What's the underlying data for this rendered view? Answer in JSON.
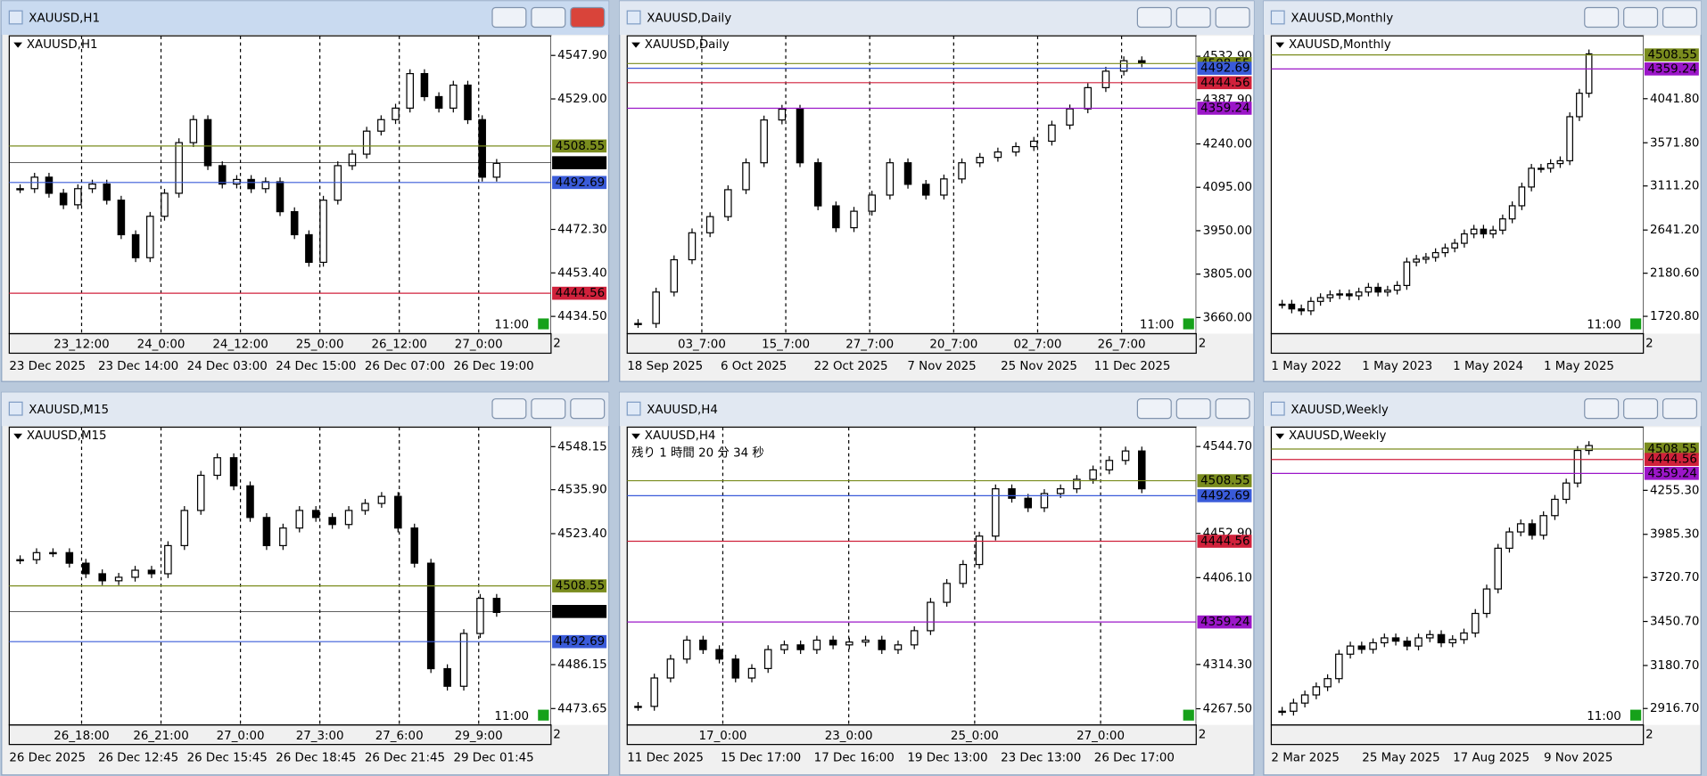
{
  "windows": [
    {
      "title": "XAUUSD,H1",
      "chart_label": "XAUUSD,H1",
      "ylim": [
        4427,
        4556.4
      ],
      "yticks": [
        {
          "value": 4547.9,
          "label": "4547.90"
        },
        {
          "value": 4529,
          "label": "4529.00"
        },
        {
          "value": 4472.3,
          "label": "4472.30"
        },
        {
          "value": 4453.4,
          "label": "4453.40"
        },
        {
          "value": 4434.5,
          "label": "4434.50"
        }
      ],
      "levels": [
        {
          "value": 4508.55,
          "color": "#7a8c1e"
        },
        {
          "value": 4501.27,
          "color": "#000000"
        },
        {
          "value": 4492.69,
          "color": "#3a5bd9"
        },
        {
          "value": 4444.56,
          "color": "#d0213b"
        }
      ],
      "closes": [
        4490,
        4495,
        4488,
        4483,
        4490,
        4492,
        4485,
        4470,
        4460,
        4478,
        4488,
        4510,
        4520,
        4500,
        4492,
        4494,
        4490,
        4493,
        4480,
        4470,
        4458,
        4485,
        4500,
        4505,
        4515,
        4520,
        4525,
        4540,
        4530,
        4525,
        4535,
        4520,
        4495,
        4501
      ],
      "time_top": [
        "23_12:00",
        "24_0:00",
        "24_12:00",
        "25_0:00",
        "26_12:00",
        "27_0:00"
      ],
      "time_bottom": [
        "23 Dec 2025",
        "23 Dec 14:00",
        "24 Dec 03:00",
        "24 Dec 15:00",
        "26 Dec 07:00",
        "26 Dec 19:00"
      ],
      "countdown": "11:00",
      "corner": "2"
    },
    {
      "title": "XAUUSD,Daily",
      "chart_label": "XAUUSD,Daily",
      "ylim": [
        3606,
        4601
      ],
      "yticks": [
        {
          "value": 4532.9,
          "label": "4532.90"
        },
        {
          "value": 4387.9,
          "label": "4387.90"
        },
        {
          "value": 4240,
          "label": "4240.00"
        },
        {
          "value": 4095,
          "label": "4095.00"
        },
        {
          "value": 3950,
          "label": "3950.00"
        },
        {
          "value": 3805,
          "label": "3805.00"
        },
        {
          "value": 3660,
          "label": "3660.00"
        }
      ],
      "levels": [
        {
          "value": 4508.55,
          "color": "#7a8c1e"
        },
        {
          "value": 4492.69,
          "color": "#3a5bd9"
        },
        {
          "value": 4444.56,
          "color": "#d0213b"
        },
        {
          "value": 4359.24,
          "color": "#9b16c8"
        }
      ],
      "closes": [
        3640,
        3745,
        3853,
        3943,
        3997,
        4087,
        4177,
        4320,
        4356,
        4177,
        4033,
        3960,
        4015,
        4069,
        4177,
        4105,
        4069,
        4123,
        4177,
        4195,
        4213,
        4231,
        4249,
        4303,
        4357,
        4428,
        4483,
        4518,
        4511
      ],
      "time_top": [
        "03_7:00",
        "15_7:00",
        "27_7:00",
        "20_7:00",
        "02_7:00",
        "26_7:00"
      ],
      "time_bottom": [
        "18 Sep 2025",
        "6 Oct 2025",
        "22 Oct 2025",
        "7 Nov 2025",
        "25 Nov 2025",
        "11 Dec 2025"
      ],
      "countdown": "11:00",
      "corner": "2"
    },
    {
      "title": "XAUUSD,Monthly",
      "chart_label": "XAUUSD,Monthly",
      "ylim": [
        1536,
        4712
      ],
      "yticks": [
        {
          "value": 4041.8,
          "label": "4041.80"
        },
        {
          "value": 3571.8,
          "label": "3571.80"
        },
        {
          "value": 3111.2,
          "label": "3111.20"
        },
        {
          "value": 2641.2,
          "label": "2641.20"
        },
        {
          "value": 2180.6,
          "label": "2180.60"
        },
        {
          "value": 1720.8,
          "label": "1720.80"
        }
      ],
      "levels": [
        {
          "value": 4508.55,
          "color": "#7a8c1e"
        },
        {
          "value": 4359.24,
          "color": "#9b16c8"
        }
      ],
      "closes": [
        1850,
        1800,
        1780,
        1880,
        1920,
        1950,
        1960,
        1940,
        1980,
        2030,
        1980,
        2000,
        2050,
        2300,
        2330,
        2350,
        2400,
        2450,
        2500,
        2600,
        2650,
        2600,
        2640,
        2760,
        2900,
        3100,
        3300,
        3300,
        3350,
        3380,
        3850,
        4100,
        4520
      ],
      "time_top": [],
      "time_bottom": [
        "1 May 2022",
        "1 May 2023",
        "1 May 2024",
        "1 May 2025"
      ],
      "countdown": "11:00",
      "corner": "2"
    },
    {
      "title": "XAUUSD,M15",
      "chart_label": "XAUUSD,M15",
      "ylim": [
        4469,
        4553.7
      ],
      "yticks": [
        {
          "value": 4548.15,
          "label": "4548.15"
        },
        {
          "value": 4535.9,
          "label": "4535.90"
        },
        {
          "value": 4523.4,
          "label": "4523.40"
        },
        {
          "value": 4486.15,
          "label": "4486.15"
        },
        {
          "value": 4473.65,
          "label": "4473.65"
        }
      ],
      "levels": [
        {
          "value": 4508.55,
          "color": "#7a8c1e"
        },
        {
          "value": 4501.27,
          "color": "#000000"
        },
        {
          "value": 4492.69,
          "color": "#3a5bd9"
        }
      ],
      "closes": [
        4516,
        4518,
        4518,
        4515,
        4512,
        4510,
        4511,
        4513,
        4512,
        4520,
        4530,
        4540,
        4545,
        4537,
        4528,
        4520,
        4525,
        4530,
        4528,
        4526,
        4530,
        4532,
        4534,
        4525,
        4515,
        4485,
        4480,
        4495,
        4505,
        4501
      ],
      "time_top": [
        "26_18:00",
        "26_21:00",
        "27_0:00",
        "27_3:00",
        "27_6:00",
        "29_9:00"
      ],
      "time_bottom": [
        "26 Dec 2025",
        "26 Dec 12:45",
        "26 Dec 15:45",
        "26 Dec 18:45",
        "26 Dec 21:45",
        "29 Dec 01:45"
      ],
      "countdown": "11:00",
      "corner": "2"
    },
    {
      "title": "XAUUSD,H4",
      "chart_label": "XAUUSD,H4",
      "ylim": [
        4250.4,
        4565.2
      ],
      "yticks": [
        {
          "value": 4544.7,
          "label": "4544.70"
        },
        {
          "value": 4452.9,
          "label": "4452.90"
        },
        {
          "value": 4406.1,
          "label": "4406.10"
        },
        {
          "value": 4314.3,
          "label": "4314.30"
        },
        {
          "value": 4267.5,
          "label": "4267.50"
        }
      ],
      "levels": [
        {
          "value": 4508.55,
          "color": "#7a8c1e"
        },
        {
          "value": 4492.69,
          "color": "#3a5bd9"
        },
        {
          "value": 4444.56,
          "color": "#d0213b"
        },
        {
          "value": 4359.24,
          "color": "#9b16c8"
        }
      ],
      "closes": [
        4270,
        4300,
        4320,
        4340,
        4330,
        4320,
        4300,
        4310,
        4330,
        4335,
        4330,
        4340,
        4335,
        4338,
        4340,
        4330,
        4335,
        4350,
        4380,
        4400,
        4420,
        4450,
        4500,
        4490,
        4480,
        4495,
        4500,
        4510,
        4520,
        4530,
        4540,
        4500
      ],
      "time_top": [
        "17_0:00",
        "23_0:00",
        "25_0:00",
        "27_0:00"
      ],
      "time_bottom": [
        "11 Dec 2025",
        "15 Dec 17:00",
        "17 Dec 16:00",
        "19 Dec 13:00",
        "23 Dec 13:00",
        "26 Dec 17:00"
      ],
      "countdown": "残り 1 時間 20 分 34 秒",
      "corner": "2"
    },
    {
      "title": "XAUUSD,Weekly",
      "chart_label": "XAUUSD,Weekly",
      "ylim": [
        2816,
        4643
      ],
      "yticks": [
        {
          "value": 4255.3,
          "label": "4255.30"
        },
        {
          "value": 3985.3,
          "label": "3985.30"
        },
        {
          "value": 3720.7,
          "label": "3720.70"
        },
        {
          "value": 3450.7,
          "label": "3450.70"
        },
        {
          "value": 3180.7,
          "label": "3180.70"
        },
        {
          "value": 2916.7,
          "label": "2916.70"
        }
      ],
      "levels": [
        {
          "value": 4508.55,
          "color": "#7a8c1e"
        },
        {
          "value": 4444.56,
          "color": "#d0213b"
        },
        {
          "value": 4359.24,
          "color": "#9b16c8"
        }
      ],
      "closes": [
        2900,
        2950,
        3000,
        3050,
        3100,
        3250,
        3300,
        3280,
        3320,
        3350,
        3330,
        3300,
        3350,
        3370,
        3320,
        3340,
        3380,
        3500,
        3650,
        3900,
        4000,
        4050,
        3980,
        4100,
        4200,
        4300,
        4500,
        4530
      ],
      "time_top": [],
      "time_bottom": [
        "2 Mar 2025",
        "25 May 2025",
        "17 Aug 2025",
        "9 Nov 2025"
      ],
      "countdown": "11:00",
      "corner": "2"
    }
  ]
}
